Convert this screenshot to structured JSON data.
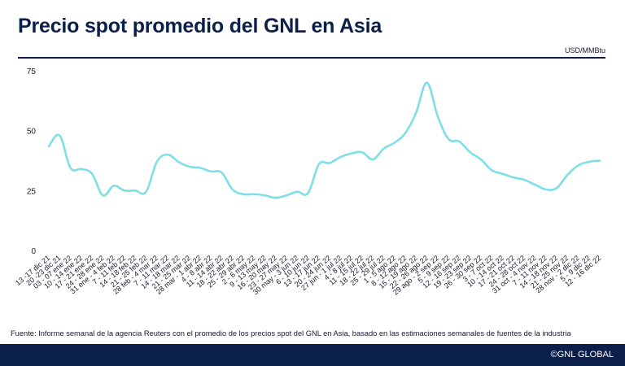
{
  "header": {
    "title": "Precio spot promedio del GNL en Asia",
    "unit": "USD/MMBtu"
  },
  "footer": {
    "source": "Fuente: Informe semanal de la agencia Reuters con el promedio de los precios spot del GNL en Asia, basado en las estimaciones semanales de fuentes de la industria",
    "brand": "©GNL GLOBAL"
  },
  "colors": {
    "line": "#7fdfe6",
    "navy": "#0b1f4b",
    "text": "#1a1a2e"
  },
  "chart_data": {
    "type": "line",
    "title": "Precio spot promedio del GNL en Asia",
    "ylabel": "USD/MMBtu",
    "ylim": [
      0,
      75
    ],
    "yticks": [
      "0",
      "25",
      "50",
      "75"
    ],
    "grid": false,
    "x": [
      "13 -17 dic 21",
      "20 -23 dic 21",
      "03 - 07 ene 22",
      "10 - 14 ene 22",
      "17 - 21 ene 22",
      "24 - 28 ene 22",
      "31 ene - 4 feb 22",
      "7 - 11 feb 22",
      "14 - 18 feb 22",
      "21 - 25 feb 22",
      "28 feb - 4 mar 22",
      "7 - 11 mar 22",
      "14 - 18 mar 22",
      "21 - 25 mar 22",
      "28 mar - 1 abr 22",
      "4 - 8 abr 22",
      "11 - 14 abr 22",
      "18 - 22 abr 22",
      "25 - 29 abr 22",
      "2 - 6 may 22",
      "9 - 13 may 22",
      "16 - 20 may 22",
      "23 - 27 may 22",
      "30 may - 3 jun 22",
      "6 - 10 jun 22",
      "13 - 17 jun 22",
      "20 - 24 jun 22",
      "27 jun - 1 jul 22",
      "4 - 8 jul 22",
      "11 - 15 jul 22",
      "18 - 22 jul 22",
      "25 - 29 jul 22",
      "1 - 5 ago 22",
      "8 - 12 ago 22",
      "15 - 19 ago 22",
      "22 - 26 ago 22",
      "29 ago - 2 sep 22",
      "5 - 9 sep 22",
      "12 - 16 sep 22",
      "19 - 23 sep 22",
      "26 - 30 sep 22",
      "3 - 7 oct 22",
      "10 - 14 oct 22",
      "17 - 21 oct 22",
      "24 - 28 oct 22",
      "31 oct - 4 nov 22",
      "7 - 11 nov 22",
      "14 - 18 nov 22",
      "21 - 25 nov 22",
      "28 nov - 2 dic 22",
      "5 - 9 dic 22",
      "12 - 16 dic 22"
    ],
    "series": [
      {
        "values": [
          43.5,
          48.0,
          34.5,
          34.0,
          32.0,
          23.0,
          27.0,
          25.0,
          25.0,
          24.5,
          37.0,
          40.0,
          37.0,
          35.0,
          34.5,
          33.0,
          32.5,
          25.5,
          23.5,
          23.5,
          23.0,
          22.0,
          23.0,
          24.5,
          24.0,
          36.0,
          36.5,
          39.0,
          40.5,
          41.0,
          38.0,
          42.5,
          45.0,
          49.0,
          57.5,
          70.0,
          56.0,
          46.5,
          45.5,
          41.0,
          38.0,
          33.5,
          32.0,
          30.5,
          29.5,
          27.5,
          25.5,
          26.0,
          31.5,
          35.5,
          37.0,
          37.5
        ]
      }
    ]
  }
}
